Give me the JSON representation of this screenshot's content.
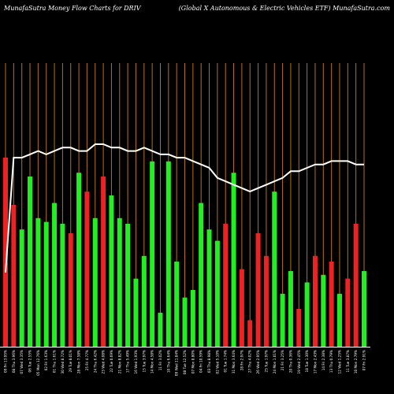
{
  "title_left": "MunafaSutra  Money Flow  Charts for DRIV",
  "title_right": "(Global X  Autonomous & Electric Vehicles ETF) MunafaSutra.com",
  "colors": {
    "background": "#000000",
    "gridline": "#b8720f",
    "up": "#22ee22",
    "down": "#ee2222",
    "price_line": "#ffffff"
  },
  "chart_data": {
    "type": "bar",
    "grid": "vertical lines at each date",
    "x_axis_labels_orientation": "vertical",
    "categories": [
      "Fri 09 May",
      "Thu 08 May",
      "Wed 07 May",
      "Tue 06 May",
      "Mon 05 May",
      "Fri 02 May",
      "Thu 01 May",
      "Wed 30 Apr",
      "Tue 29 Apr",
      "Mon 28 Apr",
      "Fri 25 Apr",
      "Thu 24 Apr",
      "Wed 23 Apr",
      "Tue 22 Apr",
      "Mon 21 Apr",
      "Thu 17 Apr",
      "Wed 16 Apr",
      "Tue 15 Apr",
      "Mon 14 Apr",
      "Fri 11 Apr",
      "Thu 10 Apr",
      "Wed 09 Apr",
      "Tue 08 Apr",
      "Mon 07 Apr",
      "Fri 04 Apr",
      "Thu 03 Apr",
      "Wed 02 Apr",
      "Tue 01 Apr",
      "Mon 31 Mar",
      "Fri 28 Mar",
      "Thu 27 Mar",
      "Wed 26 Mar",
      "Tue 25 Mar",
      "Mon 24 Mar",
      "Fri 21 Mar",
      "Thu 20 Mar",
      "Wed 19 Mar",
      "Tue 18 Mar",
      "Mon 17 Mar",
      "Fri 14 Mar",
      "Thu 13 Mar",
      "Wed 12 Mar",
      "Tue 11 Mar",
      "Mon 10 Mar",
      "Fri 07 Mar"
    ],
    "x_tick_labels": [
      "09 Fri 13.95%",
      "08 Thu 3.96%",
      "07 Wed 3.35%",
      "06 Tue 2.55%",
      "05 Mon 12.76%",
      "02 Fri 1.63%",
      "01 Thu 1.61%",
      "30 Wed 8.72%",
      "29 Tue 8.01%",
      "28 Mon 7.58%",
      "25 Fri 4.77%",
      "24 Thu 6.42%",
      "23 Wed 4.08%",
      "22 Tue 0.69%",
      "21 Mon 8.82%",
      "17 Thu 5.49%",
      "16 Wed 1.93%",
      "15 Tue 3.97%",
      "14 Mon 4.58%",
      "11 Fri 3.02%",
      "10 Thu 6.64%",
      "09 Wed 11.84%",
      "08 Tue 12.52%",
      "07 Mon 8.80%",
      "04 Fri 10.59%",
      "03 Thu 8.98%",
      "02 Wed 5.10%",
      "01 Tue 1.74%",
      "31 Mon 3.64%",
      "28 Fri 2.97%",
      "27 Thu 4.02%",
      "26 Wed 2.95%",
      "25 Tue 1.97%",
      "24 Mon 1.01%",
      "21 Fri 3.25%",
      "20 Thu 0.36%",
      "19 Wed 2.45%",
      "18 Tue 1.30%",
      "17 Mon 2.43%",
      "14 Fri 2.38%",
      "13 Thu 0.79%",
      "12 Wed 1.25%",
      "11 Tue 3.87%",
      "10 Mon 2.79%",
      "07 Fri 2.91%"
    ],
    "series": [
      {
        "values": [
          100,
          75,
          62,
          90,
          68,
          66,
          76,
          65,
          60,
          92,
          82,
          68,
          90,
          80,
          68,
          65,
          36,
          48,
          98,
          18,
          98,
          45,
          26,
          30,
          76,
          62,
          56,
          65,
          92,
          41,
          14,
          60,
          48,
          82,
          28,
          40,
          20,
          34,
          48,
          38,
          45,
          28,
          36,
          65,
          40
        ]
      }
    ],
    "direction": [
      "down",
      "down",
      "up",
      "up",
      "up",
      "up",
      "up",
      "up",
      "down",
      "up",
      "down",
      "up",
      "down",
      "up",
      "up",
      "up",
      "up",
      "up",
      "up",
      "up",
      "up",
      "up",
      "up",
      "up",
      "up",
      "up",
      "up",
      "down",
      "up",
      "down",
      "down",
      "down",
      "down",
      "up",
      "up",
      "up",
      "down",
      "up",
      "down",
      "up",
      "down",
      "up",
      "down",
      "down",
      "up"
    ],
    "price_line": [
      54,
      54,
      55,
      55,
      55,
      54,
      54,
      53,
      52,
      52,
      50,
      49,
      48,
      47,
      46,
      47,
      48,
      49,
      50,
      53,
      54,
      55,
      56,
      56,
      57,
      57,
      58,
      59,
      58,
      58,
      59,
      59,
      60,
      60,
      58,
      58,
      59,
      59,
      58,
      57,
      58,
      57,
      56,
      56,
      22
    ]
  }
}
